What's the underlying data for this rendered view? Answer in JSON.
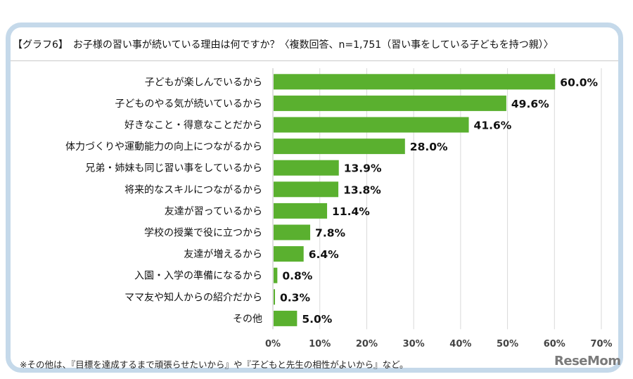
{
  "title": "【グラフ6】　お子様の習い事が続いている理由は何ですか？〈複数回答、n=1,751（習い事をしている子どもを持つ親）〉",
  "footnote": "※その他は、『目標を達成するまで頑張らせたいから』や『子どもと先生の相性がよいから』など。",
  "logo": "ReseMom",
  "colors": {
    "bar": "#5ab02f",
    "frame": "#c5d9ea",
    "text": "#111111"
  },
  "chart_data": {
    "type": "bar",
    "orientation": "horizontal",
    "categories": [
      "子どもが楽しんでいるから",
      "子どものやる気が続いているから",
      "好きなこと・得意なことだから",
      "体力づくりや運動能力の向上につながるから",
      "兄弟・姉妹も同じ習い事をしているから",
      "将来的なスキルにつながるから",
      "友達が習っているから",
      "学校の授業で役に立つから",
      "友達が増えるから",
      "入園・入学の準備になるから",
      "ママ友や知人からの紹介だから",
      "その他"
    ],
    "values": [
      60.0,
      49.6,
      41.6,
      28.0,
      13.9,
      13.8,
      11.4,
      7.8,
      6.4,
      0.8,
      0.3,
      5.0
    ],
    "value_labels": [
      "60.0%",
      "49.6%",
      "41.6%",
      "28.0%",
      "13.9%",
      "13.8%",
      "11.4%",
      "7.8%",
      "6.4%",
      "0.8%",
      "0.3%",
      "5.0%"
    ],
    "xlim": [
      0,
      70
    ],
    "xticks": [
      "0%",
      "10%",
      "20%",
      "30%",
      "40%",
      "50%",
      "60%",
      "70%"
    ],
    "grid": true,
    "legend": false
  }
}
